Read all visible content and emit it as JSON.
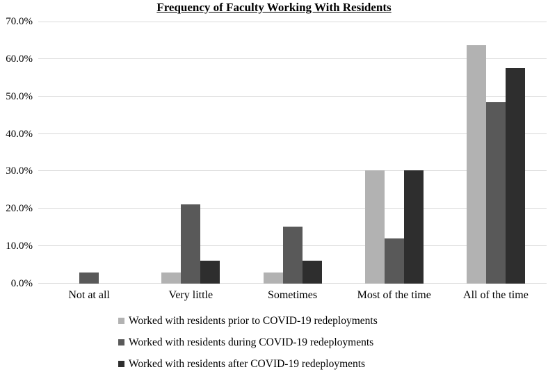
{
  "chart_data": {
    "type": "bar",
    "title": "Frequency of Faculty Working With Residents",
    "categories": [
      "Not at all",
      "Very little",
      "Sometimes",
      "Most of the time",
      "All of the time"
    ],
    "series": [
      {
        "name": "Worked with residents prior to COVID-19 redeployments",
        "color": "#b2b2b2",
        "values": [
          0,
          3.0,
          3.0,
          30.3,
          63.6
        ]
      },
      {
        "name": "Worked with residents during COVID-19 redeployments",
        "color": "#595959",
        "values": [
          3.0,
          21.2,
          15.2,
          12.1,
          48.5
        ]
      },
      {
        "name": "Worked with residents after COVID-19 redeployments",
        "color": "#2e2e2e",
        "values": [
          0,
          6.1,
          6.1,
          30.3,
          57.6
        ]
      }
    ],
    "ylim": [
      0,
      70
    ],
    "ytick_step": 10,
    "ytick_labels": [
      "0.0%",
      "10.0%",
      "20.0%",
      "30.0%",
      "40.0%",
      "50.0%",
      "60.0%",
      "70.0%"
    ],
    "grid": true,
    "legend_position": "bottom",
    "colors": {
      "gridline": "#d9d9d9",
      "text": "#000000",
      "background": "#ffffff"
    }
  }
}
